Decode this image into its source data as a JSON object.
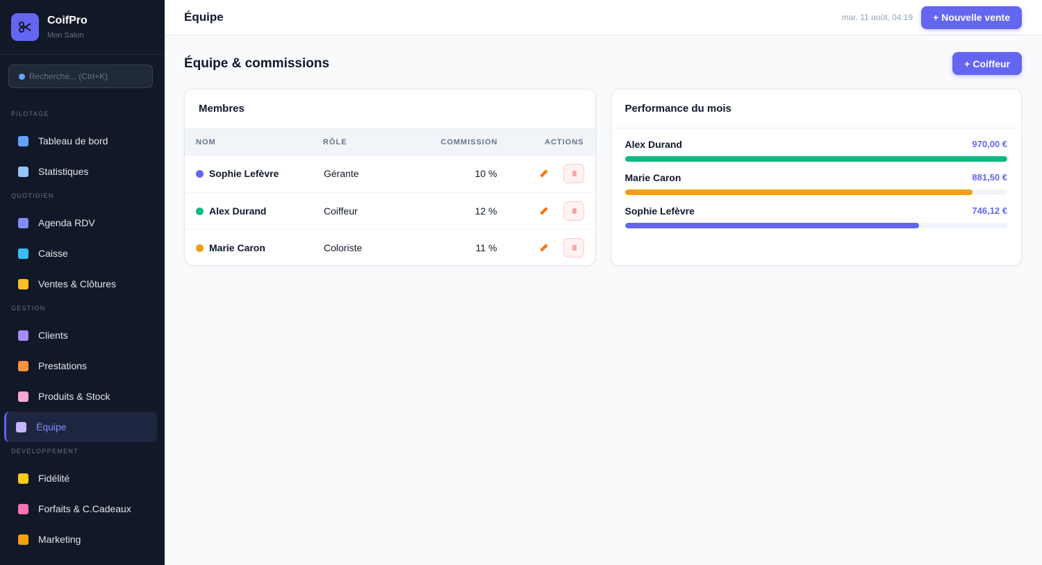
{
  "sidebar": {
    "brand": "CoifPro",
    "subtitle": "Mon Salon",
    "search": "Recherche... (Ctrl+K)",
    "active": "Équipe",
    "sections": [
      {
        "title": "PILOTAGE",
        "items": [
          "Tableau de bord",
          "Statistiques"
        ]
      },
      {
        "title": "QUOTIDIEN",
        "items": [
          "Agenda RDV",
          "Caisse",
          "Ventes & Clôtures"
        ]
      },
      {
        "title": "GESTION",
        "items": [
          "Clients",
          "Prestations",
          "Produits & Stock",
          "Équipe"
        ]
      },
      {
        "title": "DÉVELOPPEMENT",
        "items": [
          "Fidélité",
          "Forfaits & C.Cadeaux",
          "Marketing"
        ]
      }
    ]
  },
  "topbar": {
    "title": "Équipe",
    "datetime": "mar. 11 août, 04:19",
    "button": "+ Nouvelle vente"
  },
  "page": {
    "title": "Équipe & commissions",
    "button": "+ Coiffeur"
  },
  "members": {
    "title": "Membres",
    "columns": [
      "NOM",
      "RÔLE",
      "COMMISSION",
      "ACTIONS"
    ],
    "rows": [
      {
        "name": "Sophie Lefèvre",
        "role": "Gérante",
        "commission": "10 %",
        "color": "#6366f1"
      },
      {
        "name": "Alex Durand",
        "role": "Coiffeur",
        "commission": "12 %",
        "color": "#10b981"
      },
      {
        "name": "Marie Caron",
        "role": "Coloriste",
        "commission": "11 %",
        "color": "#f59e0b"
      }
    ]
  },
  "performance": {
    "title": "Performance du mois",
    "rows": [
      {
        "name": "Alex Durand",
        "value": 970,
        "value_label": "970,00 €",
        "color": "#10b981"
      },
      {
        "name": "Marie Caron",
        "value": 881.5,
        "value_label": "881,50 €",
        "color": "#f59e0b"
      },
      {
        "name": "Sophie Lefèvre",
        "value": 746.12,
        "value_label": "746,12 €",
        "color": "#6366f1"
      }
    ]
  }
}
